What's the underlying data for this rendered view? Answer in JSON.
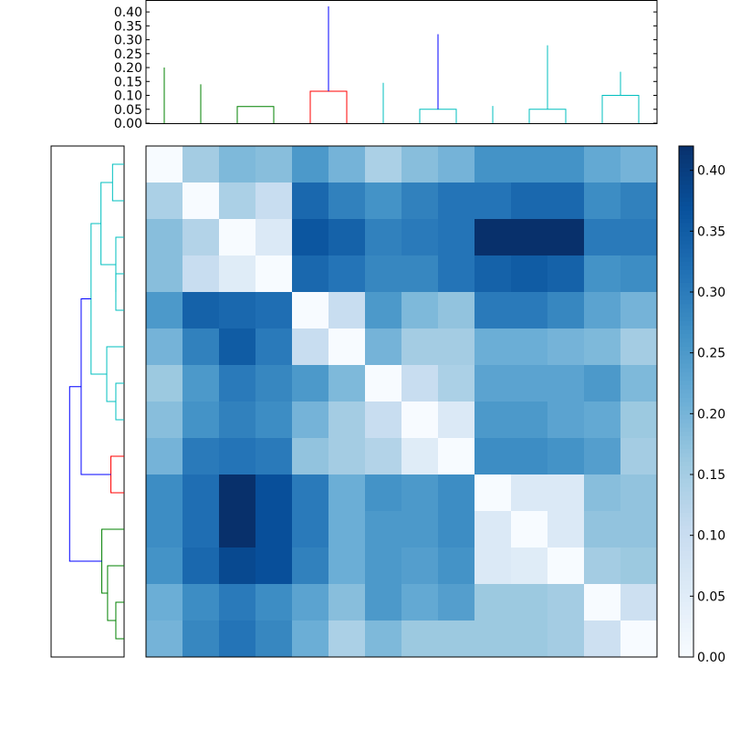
{
  "chart_data": [
    {
      "type": "heatmap",
      "title": "",
      "xlabel": "",
      "ylabel": "",
      "rows": 14,
      "cols": 14,
      "values": [
        [
          0.0,
          0.15,
          0.19,
          0.18,
          0.25,
          0.2,
          0.14,
          0.18,
          0.2,
          0.26,
          0.26,
          0.26,
          0.22,
          0.2
        ],
        [
          0.14,
          0.0,
          0.14,
          0.1,
          0.33,
          0.29,
          0.26,
          0.29,
          0.31,
          0.31,
          0.33,
          0.33,
          0.27,
          0.29
        ],
        [
          0.18,
          0.13,
          0.0,
          0.06,
          0.36,
          0.34,
          0.29,
          0.3,
          0.31,
          0.42,
          0.42,
          0.42,
          0.3,
          0.3
        ],
        [
          0.18,
          0.1,
          0.05,
          0.0,
          0.33,
          0.31,
          0.28,
          0.28,
          0.31,
          0.34,
          0.35,
          0.34,
          0.26,
          0.27
        ],
        [
          0.25,
          0.34,
          0.33,
          0.32,
          0.0,
          0.1,
          0.25,
          0.19,
          0.17,
          0.3,
          0.3,
          0.28,
          0.23,
          0.2
        ],
        [
          0.2,
          0.29,
          0.35,
          0.3,
          0.1,
          0.0,
          0.2,
          0.15,
          0.15,
          0.21,
          0.21,
          0.2,
          0.19,
          0.15
        ],
        [
          0.16,
          0.25,
          0.3,
          0.28,
          0.25,
          0.19,
          0.0,
          0.1,
          0.14,
          0.23,
          0.23,
          0.23,
          0.25,
          0.19
        ],
        [
          0.18,
          0.26,
          0.29,
          0.27,
          0.2,
          0.15,
          0.1,
          0.0,
          0.06,
          0.25,
          0.25,
          0.23,
          0.22,
          0.16
        ],
        [
          0.2,
          0.3,
          0.31,
          0.3,
          0.17,
          0.15,
          0.13,
          0.05,
          0.0,
          0.27,
          0.27,
          0.26,
          0.24,
          0.15
        ],
        [
          0.27,
          0.32,
          0.42,
          0.37,
          0.3,
          0.21,
          0.26,
          0.25,
          0.27,
          0.0,
          0.06,
          0.06,
          0.18,
          0.17
        ],
        [
          0.27,
          0.32,
          0.42,
          0.37,
          0.3,
          0.21,
          0.25,
          0.25,
          0.27,
          0.06,
          0.0,
          0.06,
          0.17,
          0.17
        ],
        [
          0.26,
          0.33,
          0.38,
          0.37,
          0.29,
          0.21,
          0.25,
          0.24,
          0.26,
          0.06,
          0.05,
          0.0,
          0.15,
          0.16
        ],
        [
          0.21,
          0.27,
          0.3,
          0.27,
          0.23,
          0.18,
          0.25,
          0.22,
          0.24,
          0.16,
          0.16,
          0.15,
          0.0,
          0.09
        ],
        [
          0.2,
          0.28,
          0.31,
          0.28,
          0.21,
          0.14,
          0.19,
          0.16,
          0.16,
          0.16,
          0.16,
          0.15,
          0.09,
          0.0
        ]
      ],
      "colormap": "Blues",
      "colorbar": {
        "vmin": 0.0,
        "vmax": 0.42,
        "ticks": [
          "0.00",
          "0.05",
          "0.10",
          "0.15",
          "0.20",
          "0.25",
          "0.30",
          "0.35",
          "0.40"
        ]
      }
    },
    {
      "type": "dendrogram",
      "orientation": "top",
      "ylim": [
        0,
        0.42
      ],
      "yticks": [
        "0.00",
        "0.05",
        "0.10",
        "0.15",
        "0.20",
        "0.25",
        "0.30",
        "0.35",
        "0.40"
      ],
      "leaf_count": 14,
      "links": [
        {
          "left": 2,
          "right": 3,
          "height": 0.06,
          "color": "#008000"
        },
        {
          "left": 1,
          "right": 15,
          "height": 0.14,
          "color": "#008000"
        },
        {
          "left": 0,
          "right": 16,
          "height": 0.2,
          "color": "#008000"
        },
        {
          "left": 4,
          "right": 5,
          "height": 0.115,
          "color": "#ff0000"
        },
        {
          "left": 7,
          "right": 8,
          "height": 0.05,
          "color": "#00bfbf"
        },
        {
          "left": 6,
          "right": 19,
          "height": 0.145,
          "color": "#00bfbf"
        },
        {
          "left": 10,
          "right": 11,
          "height": 0.05,
          "color": "#00bfbf"
        },
        {
          "left": 9,
          "right": 21,
          "height": 0.062,
          "color": "#00bfbf"
        },
        {
          "left": 12,
          "right": 13,
          "height": 0.1,
          "color": "#00bfbf"
        },
        {
          "left": 22,
          "right": 23,
          "height": 0.185,
          "color": "#00bfbf"
        },
        {
          "left": 20,
          "right": 24,
          "height": 0.28,
          "color": "#00bfbf"
        },
        {
          "left": 18,
          "right": 25,
          "height": 0.32,
          "color": "#0000ff"
        },
        {
          "left": 17,
          "right": 26,
          "height": 0.42,
          "color": "#0000ff"
        }
      ]
    },
    {
      "type": "dendrogram",
      "orientation": "left",
      "xlim": [
        0,
        0.42
      ],
      "leaf_count": 14,
      "links": [
        {
          "left": 13,
          "right": 12,
          "height": 0.05,
          "color": "#008000"
        },
        {
          "left": 11,
          "right": 14,
          "height": 0.1,
          "color": "#008000"
        },
        {
          "left": 10,
          "right": 15,
          "height": 0.135,
          "color": "#008000"
        },
        {
          "left": 9,
          "right": 8,
          "height": 0.08,
          "color": "#ff0000"
        },
        {
          "left": 7,
          "right": 6,
          "height": 0.05,
          "color": "#00bfbf"
        },
        {
          "left": 5,
          "right": 18,
          "height": 0.105,
          "color": "#00bfbf"
        },
        {
          "left": 4,
          "right": 3,
          "height": 0.05,
          "color": "#00bfbf"
        },
        {
          "left": 2,
          "right": 20,
          "height": 0.05,
          "color": "#00bfbf"
        },
        {
          "left": 1,
          "right": 0,
          "height": 0.07,
          "color": "#00bfbf"
        },
        {
          "left": 21,
          "right": 22,
          "height": 0.14,
          "color": "#00bfbf"
        },
        {
          "left": 19,
          "right": 23,
          "height": 0.2,
          "color": "#00bfbf"
        },
        {
          "left": 17,
          "right": 24,
          "height": 0.26,
          "color": "#0000ff"
        },
        {
          "left": 16,
          "right": 25,
          "height": 0.33,
          "color": "#0000ff"
        }
      ]
    }
  ]
}
